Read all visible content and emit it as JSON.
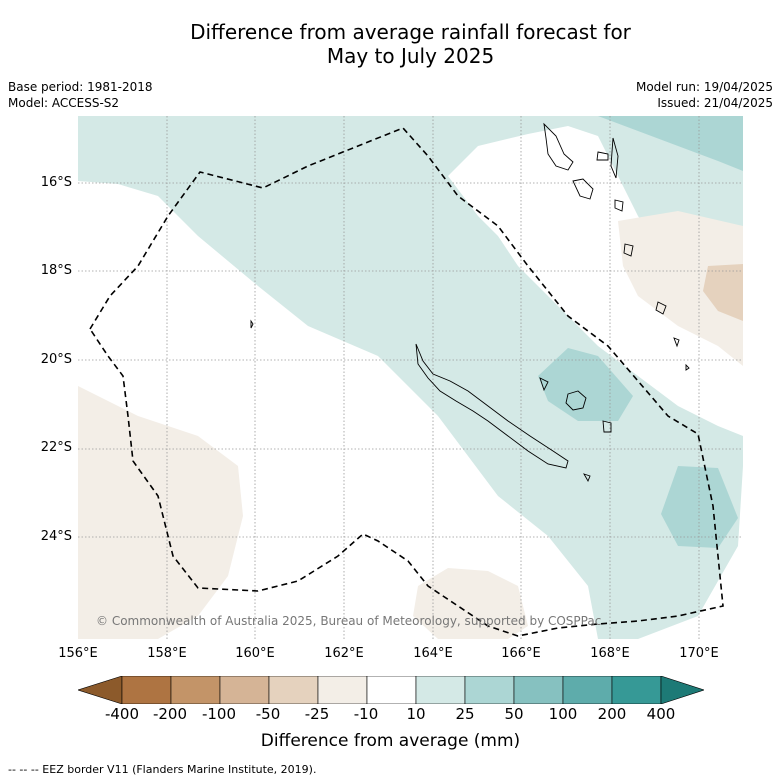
{
  "title_line1": "Difference from average rainfall forecast for",
  "title_line2": "May to July 2025",
  "base_period": "Base period: 1981-2018",
  "model": "Model: ACCESS-S2",
  "model_run": "Model run: 19/04/2025",
  "issued": "Issued: 21/04/2025",
  "lat_labels": [
    "16°S",
    "18°S",
    "20°S",
    "22°S",
    "24°S"
  ],
  "lon_labels": [
    "156°E",
    "158°E",
    "160°E",
    "162°E",
    "164°E",
    "166°E",
    "168°E",
    "170°E"
  ],
  "copyright": "© Commonwealth of Australia 2025, Bureau of Meteorology, supported by COSPPac",
  "colorbar": {
    "ticks": [
      "-400",
      "-200",
      "-100",
      "-50",
      "-25",
      "-10",
      "10",
      "25",
      "50",
      "100",
      "200",
      "400"
    ],
    "colors": [
      "#8c5a2b",
      "#ae7442",
      "#c39468",
      "#d5b496",
      "#e5d2be",
      "#f3eee7",
      "#ffffff",
      "#d4e9e6",
      "#acd6d4",
      "#86c1c0",
      "#5eacab",
      "#369996",
      "#1d7a76"
    ],
    "label": "Difference from average (mm)"
  },
  "legend_eez": "-- -- -- EEZ border V11 (Flanders Marine Institute, 2019)."
}
